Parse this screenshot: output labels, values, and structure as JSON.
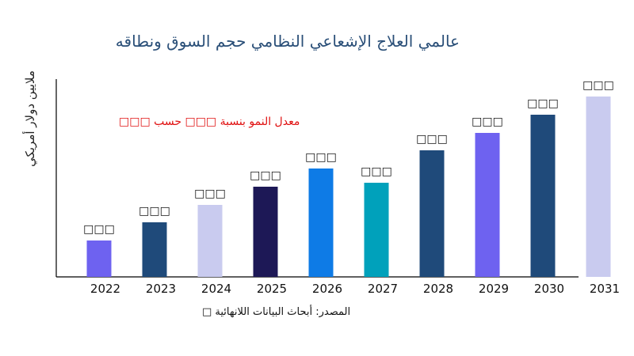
{
  "chart_data": {
    "type": "bar",
    "title": "عالمي العلاج الإشعاعي النظامي حجم السوق ونطاقه",
    "ylabel": "ملايين دولار أمريكي",
    "xlabel": "",
    "categories": [
      "2022",
      "2023",
      "2024",
      "2025",
      "2026",
      "2027",
      "2028",
      "2029",
      "2030",
      "2031"
    ],
    "values": [
      46,
      69,
      91,
      114,
      137,
      119,
      160,
      182,
      205,
      228
    ],
    "data_labels": [
      "□□□",
      "□□□",
      "□□□",
      "□□□",
      "□□□",
      "□□□",
      "□□□",
      "□□□",
      "□□□",
      "□□□"
    ],
    "colors": [
      "#6e62f0",
      "#1f4a7a",
      "#c9cbef",
      "#1d1856",
      "#0e7be6",
      "#00a1bb",
      "#1f4a7a",
      "#6e62f0",
      "#1f4a7a",
      "#c9cbef"
    ],
    "annotation": "معدل النمو بنسبة □□□ حسب □□□",
    "source": "المصدر: أبحاث البيانات اللانهائية □",
    "grid": false,
    "ylim": [
      0,
      250
    ]
  }
}
